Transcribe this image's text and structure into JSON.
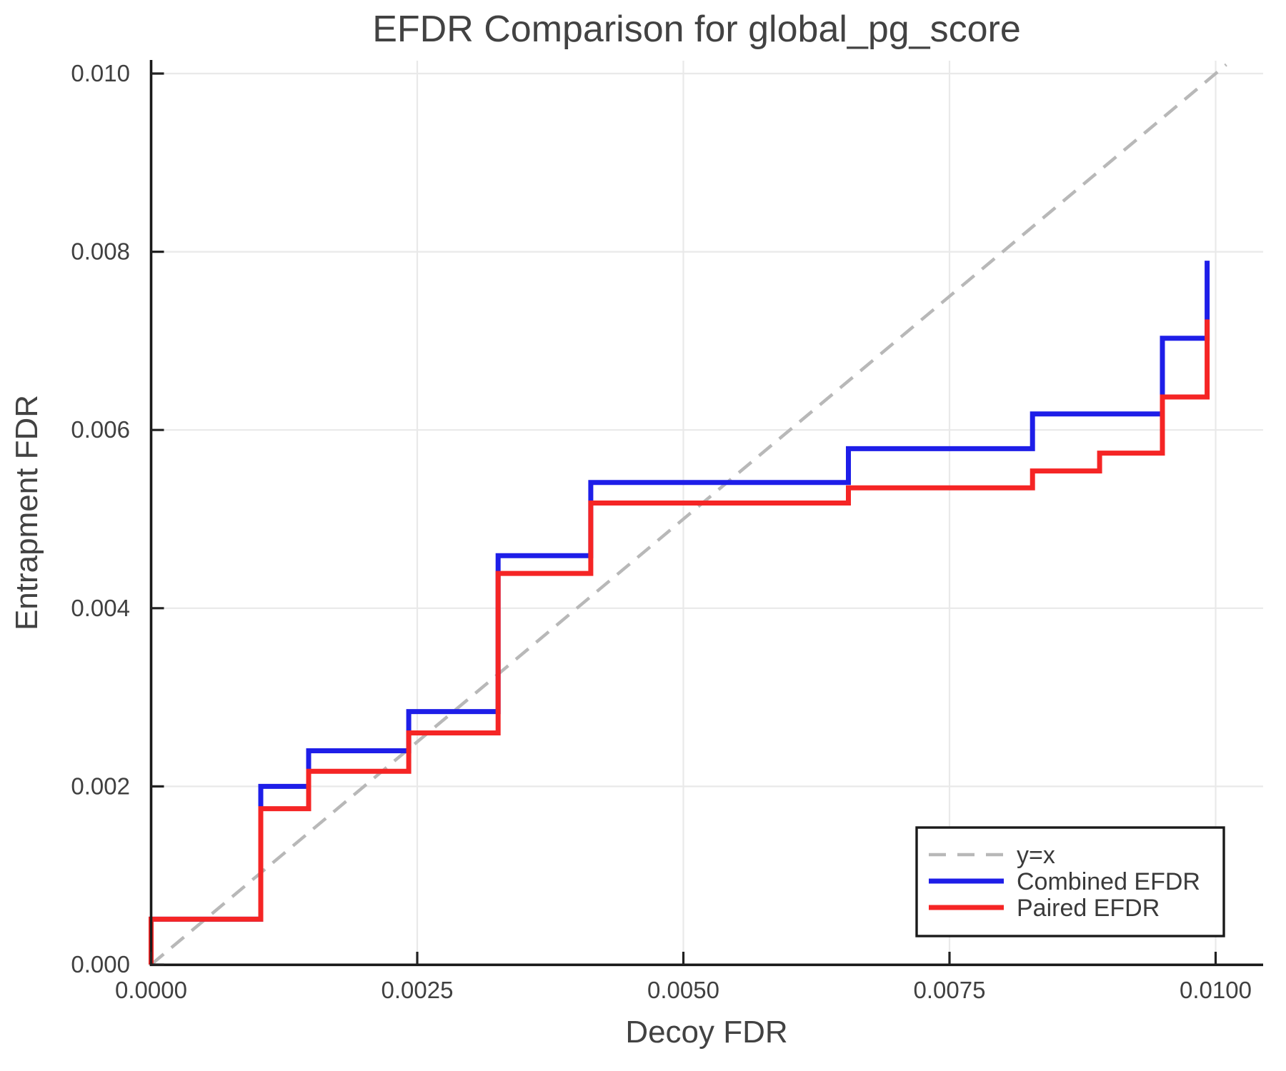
{
  "chart_data": {
    "type": "line",
    "title": "EFDR Comparison for global_pg_score",
    "xlabel": "Decoy FDR",
    "ylabel": "Entrapment FDR",
    "xlim": [
      0.0,
      0.01045
    ],
    "ylim": [
      0.0,
      0.01014
    ],
    "grid": true,
    "legend_position": "lower right",
    "x_ticks": [
      {
        "value": 0.0,
        "label": "0.0000"
      },
      {
        "value": 0.0025,
        "label": "0.0025"
      },
      {
        "value": 0.005,
        "label": "0.0050"
      },
      {
        "value": 0.0075,
        "label": "0.0075"
      },
      {
        "value": 0.01,
        "label": "0.0100"
      }
    ],
    "y_ticks": [
      {
        "value": 0.0,
        "label": "0.000"
      },
      {
        "value": 0.002,
        "label": "0.002"
      },
      {
        "value": 0.004,
        "label": "0.004"
      },
      {
        "value": 0.006,
        "label": "0.006"
      },
      {
        "value": 0.008,
        "label": "0.008"
      },
      {
        "value": 0.01,
        "label": "0.010"
      }
    ],
    "reference_line": {
      "label": "y=x",
      "style": "dashed",
      "color": "#b8b8b8",
      "from": [
        0.0,
        0.0
      ],
      "to": [
        0.0101,
        0.0101
      ]
    },
    "series": [
      {
        "name": "Combined EFDR",
        "color": "#1e1ee8",
        "step_mode": "post",
        "start_from_zero": true,
        "points": [
          [
            0.0,
            0.00051
          ],
          [
            0.00103,
            0.002
          ],
          [
            0.00148,
            0.0024
          ],
          [
            0.00242,
            0.00284
          ],
          [
            0.00326,
            0.00459
          ],
          [
            0.00413,
            0.00541
          ],
          [
            0.00655,
            0.00579
          ],
          [
            0.00828,
            0.00618
          ],
          [
            0.0095,
            0.00703
          ],
          [
            0.00992,
            0.0079
          ]
        ]
      },
      {
        "name": "Paired EFDR",
        "color": "#f52525",
        "step_mode": "post",
        "start_from_zero": true,
        "points": [
          [
            0.0,
            0.00051
          ],
          [
            0.00103,
            0.00175
          ],
          [
            0.00148,
            0.00217
          ],
          [
            0.00242,
            0.0026
          ],
          [
            0.00326,
            0.00439
          ],
          [
            0.00413,
            0.00518
          ],
          [
            0.00655,
            0.00535
          ],
          [
            0.00828,
            0.00554
          ],
          [
            0.00891,
            0.00574
          ],
          [
            0.0095,
            0.00637
          ],
          [
            0.00992,
            0.00724
          ]
        ]
      }
    ],
    "legend": {
      "entries": [
        {
          "label": "y=x",
          "color": "#b8b8b8",
          "dashed": true
        },
        {
          "label": "Combined EFDR",
          "color": "#1e1ee8",
          "dashed": false
        },
        {
          "label": "Paired EFDR",
          "color": "#f52525",
          "dashed": false
        }
      ]
    }
  }
}
